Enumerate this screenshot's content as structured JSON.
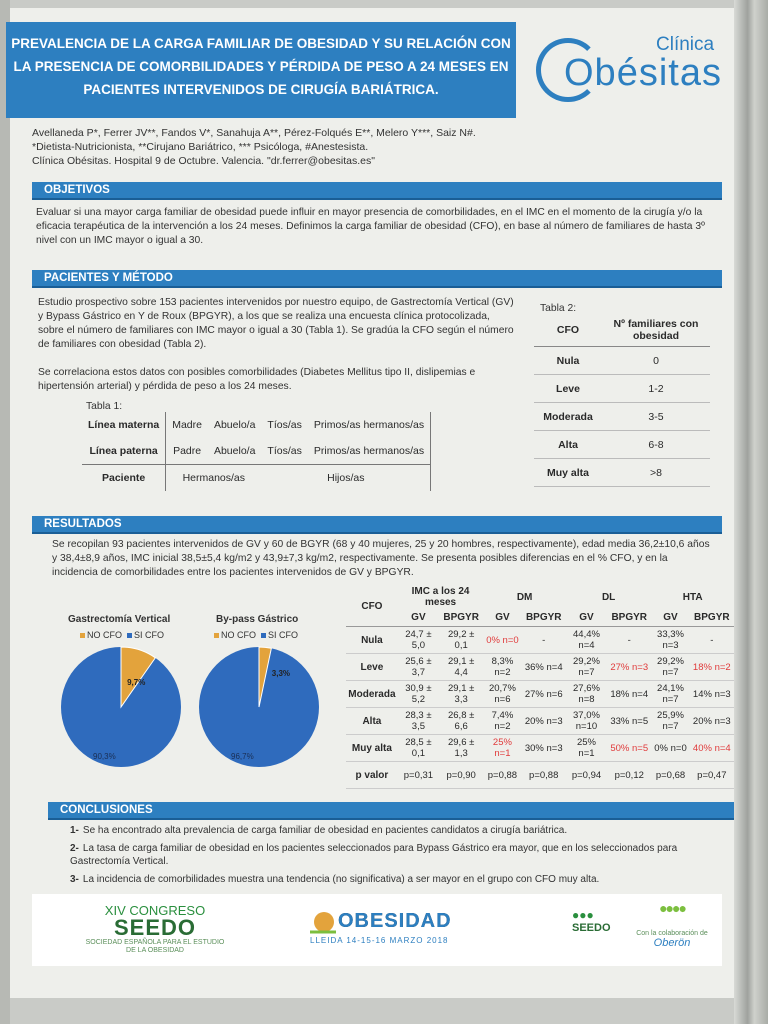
{
  "title": "PREVALENCIA DE LA CARGA FAMILIAR DE OBESIDAD Y SU RELACIÓN CON LA PRESENCIA DE COMORBILIDADES Y PÉRDIDA DE PESO A 24 MESES EN PACIENTES INTERVENIDOS DE CIRUGÍA BARIÁTRICA.",
  "logo": {
    "top": "Clínica",
    "main": "Obésitas"
  },
  "authors": {
    "names": "Avellaneda P*, Ferrer JV**, Fandos V*, Sanahuja A**, Pérez-Folqués E**, Melero Y***, Saiz N#.",
    "roles": "*Dietista-Nutricionista, **Cirujano Bariátrico, *** Psicóloga, #Anestesista.",
    "affiliation": "Clínica Obésitas. Hospital 9 de Octubre. Valencia. \"dr.ferrer@obesitas.es\""
  },
  "objetivos": {
    "heading": "OBJETIVOS",
    "text": "Evaluar si una mayor carga familiar de obesidad puede influir en mayor presencia de comorbilidades, en el IMC en el momento de la cirugía y/o la eficacia terapéutica de la intervención a los 24 meses. Definimos la carga familiar de obesidad (CFO), en base al número de familiares de hasta 3º nivel con un IMC mayor o igual a 30."
  },
  "metodo": {
    "heading": "PACIENTES Y MÉTODO",
    "p1": "Estudio prospectivo sobre 153 pacientes intervenidos por nuestro equipo, de Gastrectomía Vertical (GV) y Bypass Gástrico en Y de Roux (BPGYR), a los que se realiza una encuesta clínica protocolizada, sobre el número de familiares con IMC mayor o igual a 30 (Tabla 1). Se gradúa la CFO según el número de familiares con obesidad (Tabla 2).",
    "p2": "Se correlaciona estos datos con posibles comorbilidades (Diabetes Mellitus tipo II, dislipemias e hipertensión arterial) y pérdida de peso a los 24 meses.",
    "tabla1": {
      "caption": "Tabla 1:",
      "rows": [
        {
          "label": "Línea materna",
          "cells": [
            "Madre",
            "Abuelo/a",
            "Tíos/as",
            "Primos/as hermanos/as"
          ]
        },
        {
          "label": "Línea paterna",
          "cells": [
            "Padre",
            "Abuelo/a",
            "Tíos/as",
            "Primos/as hermanos/as"
          ]
        },
        {
          "label": "Paciente",
          "cells": [
            "Hermanos/as",
            "Hijos/as"
          ]
        }
      ]
    },
    "tabla2": {
      "caption": "Tabla 2:",
      "headers": [
        "CFO",
        "Nº familiares con obesidad"
      ],
      "rows": [
        [
          "Nula",
          "0"
        ],
        [
          "Leve",
          "1-2"
        ],
        [
          "Moderada",
          "3-5"
        ],
        [
          "Alta",
          "6-8"
        ],
        [
          "Muy alta",
          ">8"
        ]
      ]
    }
  },
  "resultados": {
    "heading": "RESULTADOS",
    "text": "Se recopilan 93 pacientes intervenidos de GV y 60 de BGYR (68 y 40 mujeres, 25 y 20 hombres, respectivamente), edad media 36,2±10,6 años y 38,4±8,9 años, IMC inicial 38,5±5,4 kg/m2 y 43,9±7,3 kg/m2, respectivamente. Se presenta posibles diferencias en el % CFO, y en la incidencia de comorbilidades entre los pacientes intervenidos de GV y BPGYR.",
    "pies": [
      {
        "title": "Gastrectomía Vertical",
        "legend": [
          "NO CFO",
          "SI CFO"
        ],
        "slices": [
          {
            "label": "90,3%",
            "value": 90.3
          },
          {
            "label": "9,7%",
            "value": 9.7
          }
        ]
      },
      {
        "title": "By-pass Gástrico",
        "legend": [
          "NO CFO",
          "SI CFO"
        ],
        "slices": [
          {
            "label": "96,7%",
            "value": 96.7
          },
          {
            "label": "3,3%",
            "value": 3.3
          }
        ]
      }
    ],
    "colors": {
      "no_cfo": "#2f6bbd",
      "si_cfo": "#e3a33c"
    },
    "tabla3": {
      "headers": [
        "CFO",
        "IMC a los 24 meses",
        "DM",
        "DL",
        "HTA"
      ],
      "subheaders": [
        "GV",
        "BPGYR",
        "GV",
        "BPGYR",
        "GV",
        "BPGYR",
        "GV",
        "BPGYR"
      ],
      "rows": [
        {
          "label": "Nula",
          "cells": [
            "24,7 ± 5,0",
            "29,2 ± 0,1",
            "0% n=0",
            "-",
            "44,4% n=4",
            "-",
            "33,3% n=3",
            "-"
          ]
        },
        {
          "label": "Leve",
          "cells": [
            "25,6 ± 3,7",
            "29,1 ± 4,4",
            "8,3% n=2",
            "36% n=4",
            "29,2% n=7",
            "27% n=3",
            "29,2% n=7",
            "18% n=2"
          ]
        },
        {
          "label": "Moderada",
          "cells": [
            "30,9 ± 5,2",
            "29,1 ± 3,3",
            "20,7% n=6",
            "27% n=6",
            "27,6% n=8",
            "18% n=4",
            "24,1% n=7",
            "14% n=3"
          ]
        },
        {
          "label": "Alta",
          "cells": [
            "28,3 ± 3,5",
            "26,8 ± 6,6",
            "7,4% n=2",
            "20% n=3",
            "37,0% n=10",
            "33% n=5",
            "25,9% n=7",
            "20% n=3"
          ]
        },
        {
          "label": "Muy alta",
          "cells": [
            "28,5 ± 0,1",
            "29,6 ± 1,3",
            "25% n=1",
            "30% n=3",
            "25% n=1",
            "50% n=5",
            "0% n=0",
            "40% n=4"
          ]
        },
        {
          "label": "p valor",
          "cells": [
            "p=0,31",
            "p=0,90",
            "p=0,88",
            "p=0,88",
            "p=0,94",
            "p=0,12",
            "p=0,68",
            "p=0,47"
          ]
        }
      ]
    }
  },
  "conclusiones": {
    "heading": "CONCLUSIONES",
    "items": [
      {
        "num": "1-",
        "text": "Se ha encontrado alta prevalencia de carga familiar de obesidad en pacientes candidatos a cirugía bariátrica."
      },
      {
        "num": "2-",
        "text": "La tasa de carga familiar de obesidad en los pacientes seleccionados para Bypass Gástrico era mayor, que en los seleccionados para Gastrectomía Vertical."
      },
      {
        "num": "3-",
        "text": "La incidencia de comorbilidades muestra una tendencia (no significativa) a ser mayor en el grupo con CFO muy alta."
      }
    ]
  },
  "footer": {
    "congreso_line1": "XIV CONGRESO",
    "congreso_line2": "SEEDO",
    "congreso_sub": "SOCIEDAD ESPAÑOLA PARA EL ESTUDIO DE LA OBESIDAD",
    "event": "OBESIDAD",
    "dates": "LLEIDA 14-15-16 MARZO 2018",
    "seedo": "SEEDO",
    "collab": "Con la colaboración de",
    "sponsor": "Oberön"
  }
}
